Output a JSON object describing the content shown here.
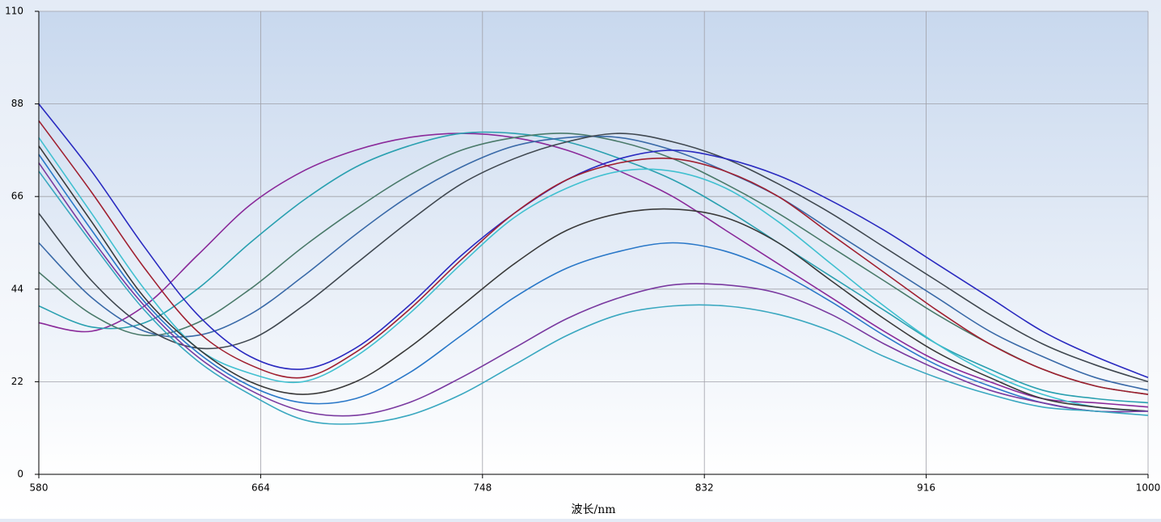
{
  "chart_data": {
    "type": "line",
    "x_label": "波长/nm",
    "x": [
      580,
      600,
      620,
      640,
      660,
      680,
      700,
      720,
      740,
      760,
      780,
      800,
      820,
      840,
      860,
      880,
      900,
      920,
      940,
      960,
      980,
      1000
    ],
    "xlim": [
      580,
      1000
    ],
    "xticks": [
      580,
      664,
      748,
      832,
      916,
      1000
    ],
    "ylim": [
      0,
      110
    ],
    "yticks": [
      0,
      22,
      44,
      66,
      88,
      110
    ],
    "grid": true,
    "series": [
      {
        "color": "#8a2a9a",
        "values": [
          36,
          34,
          40,
          52,
          64,
          72,
          77,
          80,
          81,
          80,
          77,
          72,
          66,
          58,
          50,
          42,
          34,
          27,
          22,
          18,
          17,
          16
        ]
      },
      {
        "color": "#2aa0b0",
        "values": [
          40,
          35,
          36,
          44,
          55,
          65,
          73,
          78,
          81,
          81,
          79,
          75,
          70,
          63,
          55,
          47,
          39,
          31,
          25,
          20,
          18,
          17
        ]
      },
      {
        "color": "#4a7a6a",
        "values": [
          48,
          38,
          33,
          36,
          44,
          54,
          63,
          71,
          77,
          80,
          81,
          79,
          75,
          69,
          62,
          54,
          46,
          38,
          31,
          25,
          21,
          19
        ]
      },
      {
        "color": "#3a6aa8",
        "values": [
          55,
          42,
          34,
          33,
          38,
          47,
          57,
          66,
          73,
          78,
          80,
          80,
          77,
          72,
          66,
          58,
          50,
          42,
          34,
          28,
          23,
          20
        ]
      },
      {
        "color": "#404850",
        "values": [
          62,
          46,
          35,
          30,
          32,
          40,
          50,
          60,
          69,
          75,
          79,
          81,
          79,
          75,
          69,
          62,
          54,
          46,
          38,
          31,
          26,
          22
        ]
      },
      {
        "color": "#2a2ac0",
        "values": [
          88,
          72,
          54,
          38,
          28,
          25,
          30,
          40,
          52,
          62,
          70,
          75,
          77,
          75,
          71,
          65,
          58,
          50,
          42,
          34,
          28,
          23
        ]
      },
      {
        "color": "#a02030",
        "values": [
          84,
          67,
          49,
          34,
          26,
          23,
          29,
          39,
          51,
          62,
          70,
          74,
          75,
          72,
          66,
          57,
          48,
          39,
          31,
          25,
          21,
          19
        ]
      },
      {
        "color": "#40c0d0",
        "values": [
          80,
          62,
          44,
          30,
          24,
          22,
          28,
          38,
          50,
          61,
          68,
          72,
          72,
          68,
          60,
          50,
          40,
          31,
          24,
          19,
          16,
          15
        ]
      },
      {
        "color": "#3a3a3a",
        "values": [
          78,
          60,
          42,
          30,
          22,
          19,
          22,
          30,
          40,
          50,
          58,
          62,
          63,
          61,
          55,
          46,
          37,
          29,
          23,
          18,
          16,
          15
        ]
      },
      {
        "color": "#2a78c8",
        "values": [
          76,
          58,
          41,
          29,
          21,
          17,
          18,
          24,
          33,
          42,
          49,
          53,
          55,
          53,
          48,
          41,
          33,
          26,
          21,
          17,
          15,
          15
        ]
      },
      {
        "color": "#7a3aa0",
        "values": [
          74,
          56,
          40,
          28,
          20,
          15,
          14,
          17,
          23,
          30,
          37,
          42,
          45,
          45,
          43,
          38,
          31,
          25,
          20,
          17,
          15,
          15
        ]
      },
      {
        "color": "#3aa8c0",
        "values": [
          72,
          55,
          39,
          27,
          19,
          13,
          12,
          14,
          19,
          26,
          33,
          38,
          40,
          40,
          38,
          34,
          28,
          23,
          19,
          16,
          15,
          14
        ]
      }
    ]
  }
}
